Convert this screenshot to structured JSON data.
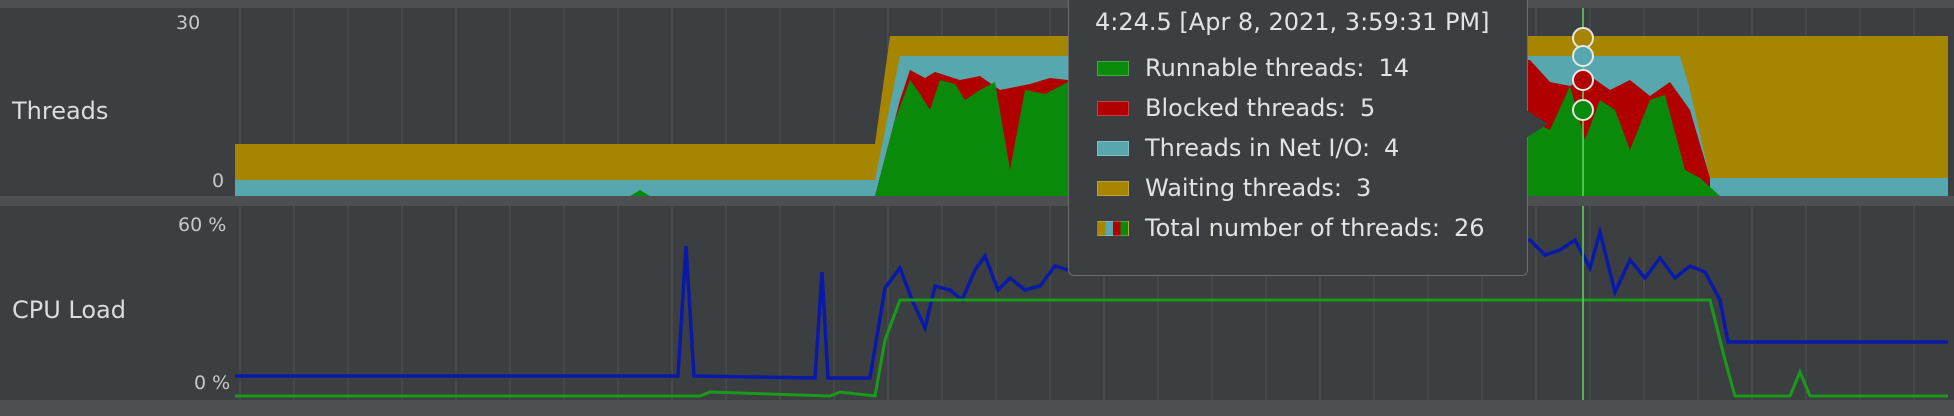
{
  "threads": {
    "label": "Threads",
    "ticks": [
      "30",
      "0"
    ]
  },
  "cpu": {
    "label": "CPU Load",
    "ticks": [
      "60 %",
      "0 %"
    ]
  },
  "tooltip": {
    "title": "4:24.5 [Apr 8, 2021, 3:59:31 PM]",
    "rows": [
      {
        "label": "Runnable threads:",
        "value": "14",
        "color": "#0a8a0a"
      },
      {
        "label": "Blocked threads:",
        "value": "5",
        "color": "#b00000"
      },
      {
        "label": "Threads in Net I/O:",
        "value": "4",
        "color": "#56a8ae"
      },
      {
        "label": "Waiting threads:",
        "value": "3",
        "color": "#a68500"
      },
      {
        "label": "Total number of threads:",
        "value": "26",
        "color": "multi"
      }
    ]
  },
  "colors": {
    "background": "#3c3f41",
    "runnable": "#0a8a0a",
    "blocked": "#b00000",
    "net_io": "#56a8ae",
    "waiting": "#a68500",
    "cpu_line": "#0a1aa8",
    "gc_line": "#1a9a1a",
    "cursor": "#63d663"
  }
}
